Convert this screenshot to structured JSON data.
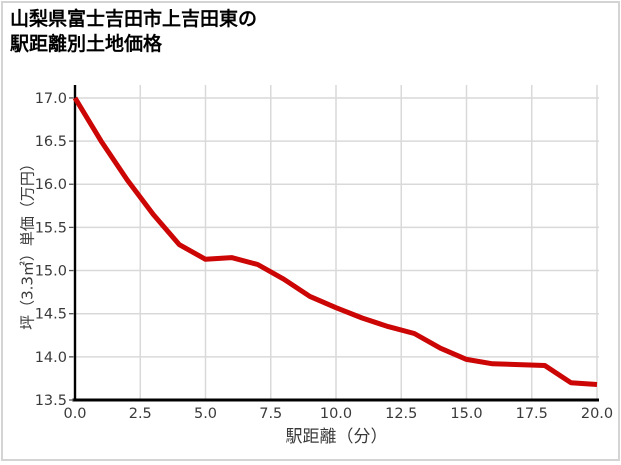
{
  "page": {
    "title_line1": "山梨県富士吉田市上吉田東の",
    "title_line2": "駅距離別土地価格"
  },
  "chart": {
    "y_axis_title": "坪（3.3㎡）単価（万円）",
    "x_axis_title": "駅距離（分）",
    "colors": {
      "line": "#cc0505",
      "grid": "#d9d9d9",
      "axis": "#000000",
      "tick_text": "#3a3a3a",
      "page_border": "#d4d4d4",
      "background": "#ffffff"
    }
  },
  "chart_data": {
    "type": "line",
    "title": "山梨県富士吉田市上吉田東の駅距離別土地価格",
    "xlabel": "駅距離（分）",
    "ylabel": "坪（3.3㎡）単価（万円）",
    "x": [
      0,
      1,
      2,
      3,
      4,
      5,
      6,
      7,
      8,
      9,
      10,
      11,
      12,
      13,
      14,
      15,
      16,
      17,
      18,
      19,
      20
    ],
    "values": [
      17.0,
      16.5,
      16.05,
      15.65,
      15.3,
      15.13,
      15.15,
      15.07,
      14.9,
      14.7,
      14.57,
      14.45,
      14.35,
      14.27,
      14.1,
      13.97,
      13.92,
      13.91,
      13.9,
      13.7,
      13.68
    ],
    "series_name": "駅距離別土地価格",
    "xlim": [
      0,
      20
    ],
    "ylim": [
      13.5,
      17.15
    ],
    "x_ticks": [
      0,
      2.5,
      5,
      7.5,
      10,
      12.5,
      15,
      17.5,
      20
    ],
    "x_tick_labels": [
      "0.0",
      "2.5",
      "5.0",
      "7.5",
      "10.0",
      "12.5",
      "15.0",
      "17.5",
      "20.0"
    ],
    "y_ticks": [
      13.5,
      14.0,
      14.5,
      15.0,
      15.5,
      16.0,
      16.5,
      17.0
    ],
    "y_tick_labels": [
      "13.5",
      "14.0",
      "14.5",
      "15.0",
      "15.5",
      "16.0",
      "16.5",
      "17.0"
    ],
    "grid": true,
    "legend": false,
    "line_color": "#cc0505",
    "line_width": 5
  }
}
